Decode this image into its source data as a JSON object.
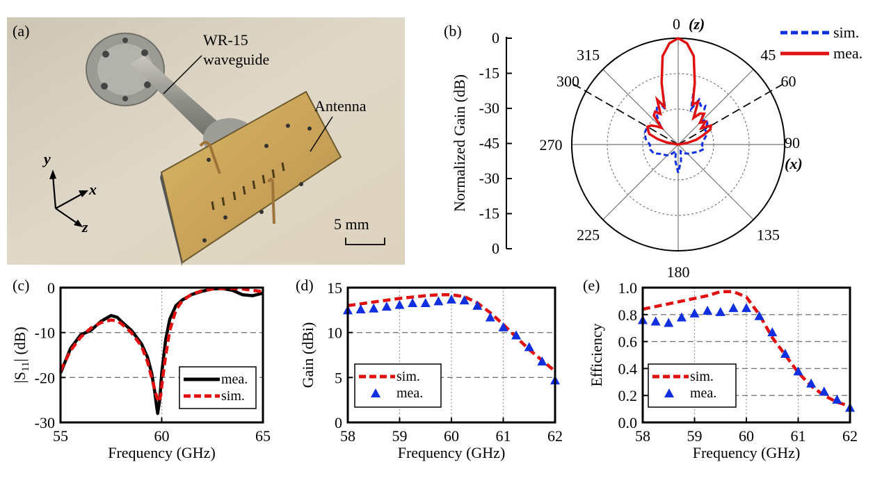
{
  "panels": {
    "a": {
      "label": "(a)",
      "waveguide_label_1": "WR-15",
      "waveguide_label_2": "waveguide",
      "antenna_label": "Antenna",
      "scale_bar_label": "5 mm",
      "axis_y": "y",
      "axis_x": "x",
      "axis_z": "z"
    },
    "b": {
      "label": "(b)",
      "top_label_num": "0",
      "top_label_axis": "(z)",
      "right_label_num": "90",
      "right_label_axis": "(x)"
    },
    "c": {
      "label": "(c)"
    },
    "d": {
      "label": "(d)"
    },
    "e": {
      "label": "(e)"
    }
  },
  "chart_data": [
    {
      "panel": "b",
      "type": "line",
      "subtype": "polar",
      "ylabel": "Normalized Gain (dB)",
      "radial_ticks": [
        "0",
        "-15",
        "-30",
        "-45",
        "-30",
        "-15",
        "0"
      ],
      "angle_labels": [
        "0",
        "45",
        "60",
        "90",
        "135",
        "180",
        "225",
        "270",
        "300",
        "315"
      ],
      "dashed_marker_angles": [
        300,
        60
      ],
      "rlim": [
        -45,
        0
      ],
      "legend": [
        "sim.",
        "mea."
      ],
      "legend_position": "top-right",
      "colors": {
        "sim.": "#1030e0",
        "mea.": "#e01010"
      },
      "series": [
        {
          "name": "sim.",
          "style": "dashed",
          "theta": [
            -180,
            -170,
            -160,
            -150,
            -140,
            -130,
            -120,
            -110,
            -100,
            -90,
            -80,
            -70,
            -60,
            -55,
            -50,
            -45,
            -40,
            -35,
            -30,
            -25,
            -20,
            -15,
            -10,
            -5,
            0,
            5,
            10,
            15,
            20,
            25,
            30,
            35,
            40,
            45,
            50,
            55,
            60,
            70,
            80,
            90,
            100,
            110,
            120,
            130,
            140,
            150,
            160,
            170,
            180
          ],
          "r": [
            -33,
            -38,
            -42,
            -41,
            -39,
            -38,
            -37,
            -34,
            -33,
            -33,
            -31,
            -30,
            -30,
            -31,
            -33,
            -35,
            -32,
            -29,
            -27,
            -25,
            -29,
            -18,
            -7,
            -2,
            0,
            -2,
            -7,
            -18,
            -29,
            -24,
            -26,
            -25,
            -29,
            -31,
            -29,
            -30,
            -32,
            -32,
            -34,
            -35,
            -34,
            -36,
            -38,
            -39,
            -40,
            -41,
            -42,
            -38,
            -33
          ]
        },
        {
          "name": "mea.",
          "style": "solid",
          "theta": [
            -85,
            -80,
            -75,
            -70,
            -65,
            -60,
            -55,
            -50,
            -45,
            -40,
            -35,
            -30,
            -25,
            -20,
            -15,
            -10,
            -5,
            0,
            5,
            10,
            15,
            20,
            25,
            30,
            35,
            40,
            45,
            50,
            55,
            60,
            65,
            70,
            75,
            80,
            85
          ],
          "r": [
            -45,
            -40,
            -36,
            -32,
            -31,
            -30,
            -31,
            -33,
            -35,
            -29,
            -28,
            -30,
            -24,
            -28,
            -18,
            -7,
            -2,
            0,
            -2,
            -7,
            -18,
            -27,
            -25,
            -32,
            -29,
            -28,
            -32,
            -30,
            -33,
            -29,
            -30,
            -34,
            -37,
            -41,
            -45
          ]
        }
      ]
    },
    {
      "panel": "c",
      "type": "line",
      "xlabel": "Frequency (GHz)",
      "ylabel_prefix": "|S",
      "ylabel_sub": "11",
      "ylabel_suffix": "| (dB)",
      "xlim": [
        55,
        65
      ],
      "ylim": [
        -30,
        0
      ],
      "xticks": [
        55,
        60,
        65
      ],
      "yticks": [
        -30,
        -20,
        -10,
        0
      ],
      "legend": [
        "mea.",
        "sim."
      ],
      "legend_position": "bottom-right",
      "colors": {
        "mea.": "#000000",
        "sim.": "#e01010"
      },
      "series": [
        {
          "name": "mea.",
          "style": "solid",
          "x": [
            55,
            55.5,
            56,
            56.5,
            57,
            57.5,
            57.8,
            58,
            58.5,
            59,
            59.3,
            59.5,
            59.65,
            59.75,
            59.8,
            59.9,
            60,
            60.2,
            60.4,
            60.7,
            61,
            61.5,
            62,
            62.5,
            63,
            63.5,
            64,
            64.5,
            65
          ],
          "y": [
            -19,
            -13.5,
            -10.5,
            -9.5,
            -7.5,
            -6.2,
            -6.6,
            -7.5,
            -9.5,
            -12.5,
            -15.5,
            -19,
            -23,
            -26.5,
            -28,
            -25,
            -19,
            -11.5,
            -7,
            -4,
            -2.8,
            -1.5,
            -0.8,
            -0.3,
            -0.2,
            -0.6,
            -1.6,
            -1.8,
            -1.2
          ]
        },
        {
          "name": "sim.",
          "style": "dashed",
          "x": [
            55,
            55.5,
            56,
            56.5,
            57,
            57.5,
            57.8,
            58,
            58.5,
            59,
            59.3,
            59.5,
            59.7,
            59.85,
            59.95,
            60.05,
            60.2,
            60.4,
            60.7,
            61,
            61.5,
            62,
            62.5,
            63,
            63.5,
            64,
            64.5,
            65
          ],
          "y": [
            -18.5,
            -14,
            -11,
            -9,
            -7.8,
            -7.2,
            -7.4,
            -8,
            -10,
            -13,
            -16.5,
            -20,
            -23.5,
            -25.5,
            -24,
            -20,
            -15,
            -9.5,
            -5,
            -3,
            -1.4,
            -0.7,
            -0.3,
            -0.2,
            -0.2,
            -0.3,
            -0.6,
            -0.9
          ]
        }
      ]
    },
    {
      "panel": "d",
      "type": "line",
      "xlabel": "Frequency (GHz)",
      "ylabel": "Gain (dBi)",
      "xlim": [
        58,
        62
      ],
      "ylim": [
        0,
        15
      ],
      "xticks": [
        58,
        59,
        60,
        61,
        62
      ],
      "yticks": [
        0,
        5,
        10,
        15
      ],
      "legend": [
        "sim.",
        "mea."
      ],
      "legend_position": "bottom-left",
      "colors": {
        "sim.": "#e01010",
        "mea.": "#1030e0"
      },
      "series": [
        {
          "name": "sim.",
          "style": "dashed",
          "x": [
            58,
            58.25,
            58.5,
            58.75,
            59,
            59.25,
            59.5,
            59.75,
            60,
            60.25,
            60.5,
            60.75,
            61,
            61.25,
            61.5,
            61.75,
            62
          ],
          "y": [
            13.0,
            13.2,
            13.4,
            13.6,
            13.8,
            13.95,
            14.1,
            14.2,
            14.2,
            14.0,
            13.3,
            12.2,
            10.9,
            9.5,
            8.1,
            6.9,
            5.7
          ]
        },
        {
          "name": "mea.",
          "style": "triangle",
          "x": [
            58,
            58.25,
            58.5,
            58.75,
            59,
            59.25,
            59.5,
            59.75,
            60,
            60.25,
            60.5,
            60.75,
            61,
            61.25,
            61.5,
            61.75,
            62
          ],
          "y": [
            12.5,
            12.6,
            12.7,
            12.9,
            13.1,
            13.3,
            13.3,
            13.5,
            13.7,
            13.6,
            13.0,
            11.7,
            10.6,
            9.7,
            8.4,
            6.8,
            4.7
          ]
        }
      ]
    },
    {
      "panel": "e",
      "type": "line",
      "xlabel": "Frequency (GHz)",
      "ylabel": "Efficiency",
      "xlim": [
        58,
        62
      ],
      "ylim": [
        0,
        1
      ],
      "xticks": [
        58,
        59,
        60,
        61,
        62
      ],
      "yticks": [
        0.0,
        0.2,
        0.4,
        0.6,
        0.8,
        1.0
      ],
      "legend": [
        "sim.",
        "mea."
      ],
      "legend_position": "bottom-left",
      "colors": {
        "sim.": "#e01010",
        "mea.": "#1030e0"
      },
      "series": [
        {
          "name": "sim.",
          "style": "dashed",
          "x": [
            58,
            58.25,
            58.5,
            58.75,
            59,
            59.25,
            59.5,
            59.75,
            60,
            60.25,
            60.5,
            60.75,
            61,
            61.25,
            61.5,
            61.75,
            62
          ],
          "y": [
            0.84,
            0.86,
            0.88,
            0.9,
            0.92,
            0.94,
            0.97,
            0.97,
            0.93,
            0.8,
            0.63,
            0.5,
            0.37,
            0.27,
            0.2,
            0.15,
            0.12
          ]
        },
        {
          "name": "mea.",
          "style": "triangle",
          "x": [
            58,
            58.25,
            58.5,
            58.75,
            59,
            59.25,
            59.5,
            59.75,
            60,
            60.25,
            60.5,
            60.75,
            61,
            61.25,
            61.5,
            61.75,
            62
          ],
          "y": [
            0.76,
            0.75,
            0.74,
            0.78,
            0.81,
            0.83,
            0.82,
            0.85,
            0.85,
            0.79,
            0.67,
            0.51,
            0.38,
            0.29,
            0.23,
            0.17,
            0.11
          ]
        }
      ]
    }
  ]
}
